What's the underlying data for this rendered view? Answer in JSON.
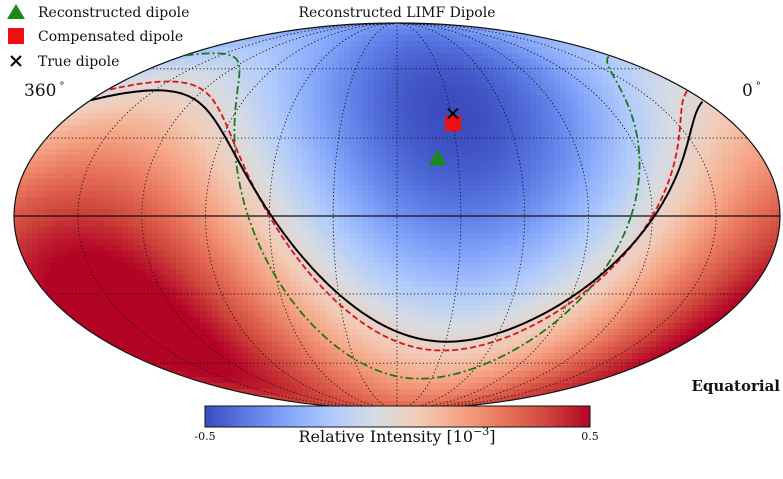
{
  "chart_data": {
    "type": "heatmap",
    "projection": "mollweide",
    "title": "Reconstructed LIMF Dipole",
    "frame_label": "Equatorial",
    "ra_left_label": "360",
    "ra_right_label": "0",
    "degree_symbol": "°",
    "map_range": [
      -0.5,
      0.5
    ],
    "colorbar": {
      "label": "Relative Intensity [10",
      "label_exp": "−3",
      "label_close": "]",
      "min_label": "-0.5",
      "max_label": "0.5",
      "cmap": [
        "#3a4cc0",
        "#5d7ce6",
        "#87a8fb",
        "#b1cbfc",
        "#d7dce3",
        "#f2cbb7",
        "#f6a384",
        "#e7745b",
        "#cf453c",
        "#b40426"
      ]
    },
    "legend": {
      "placement": "top-left",
      "entries": [
        {
          "label": "Reconstructed dipole",
          "marker": "triangle",
          "color": "#1a8a1a"
        },
        {
          "label": "Compensated dipole",
          "marker": "square",
          "color": "#ee1111"
        },
        {
          "label": "True dipole",
          "marker": "x",
          "color": "#000000"
        }
      ]
    },
    "points": {
      "true_dipole": {
        "ra": 149,
        "dec": 40
      },
      "compensated_dipole": {
        "ra": 150,
        "dec": 36
      },
      "reconstructed_dipole": {
        "ra": 160,
        "dec": 22
      }
    },
    "lines": [
      {
        "name": "true dipole horizon",
        "style": "solid",
        "color": "#000000"
      },
      {
        "name": "compensated dipole horizon",
        "style": "dashed",
        "color": "#dd1111"
      },
      {
        "name": "reconstructed dipole horizon",
        "style": "dashdot",
        "color": "#1a7a1a"
      }
    ],
    "grid": true,
    "graticule": {
      "ra_step": 30,
      "dec_step": 30
    }
  }
}
